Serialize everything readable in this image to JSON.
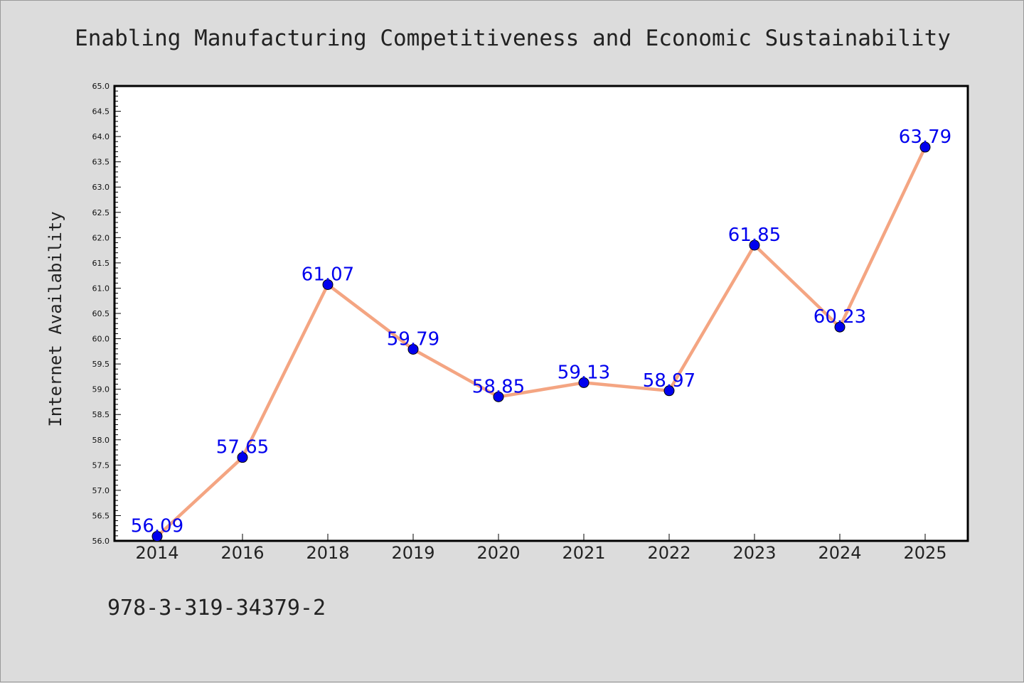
{
  "footer_text": "978-3-319-34379-2",
  "colors": {
    "background": "#dcdcdc",
    "plot_background": "#ffffff",
    "line": "#f4a582",
    "marker": "#0000ee",
    "label": "#0000ee"
  },
  "chart_data": {
    "type": "line",
    "title": "Enabling Manufacturing Competitiveness and Economic Sustainability",
    "xlabel": "",
    "ylabel": "Internet Availability",
    "categories": [
      "2014",
      "2016",
      "2018",
      "2019",
      "2020",
      "2021",
      "2022",
      "2023",
      "2024",
      "2025"
    ],
    "series": [
      {
        "values": [
          56.09,
          57.65,
          61.07,
          59.79,
          58.85,
          59.13,
          58.97,
          61.85,
          60.23,
          63.79
        ],
        "labels": [
          "56.09",
          "57.65",
          "61.07",
          "59.79",
          "58.85",
          "59.13",
          "58.97",
          "61.85",
          "60.23",
          "63.79"
        ]
      }
    ],
    "ylim": [
      56.0,
      65.0
    ],
    "yticks": [
      "56.0",
      "56.5",
      "57.0",
      "57.5",
      "58.0",
      "58.5",
      "59.0",
      "59.5",
      "60.0",
      "60.5",
      "61.0",
      "61.5",
      "62.0",
      "62.5",
      "63.0",
      "63.5",
      "64.0",
      "64.5",
      "65.0"
    ],
    "grid": false,
    "legend": "none",
    "marker": "circle"
  }
}
